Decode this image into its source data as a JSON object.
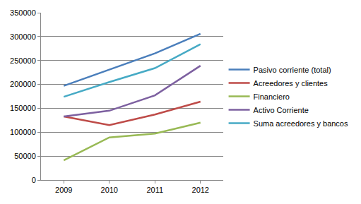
{
  "chart_data": {
    "type": "line",
    "categories": [
      "2009",
      "2010",
      "2011",
      "2012"
    ],
    "series": [
      {
        "name": "Pasivo corriente (total)",
        "color": "#4a7ebb",
        "values": [
          197000,
          231000,
          265000,
          306000
        ]
      },
      {
        "name": "Acreedores y clientes",
        "color": "#be4b48",
        "values": [
          133000,
          115000,
          137000,
          164000
        ]
      },
      {
        "name": "Financiero",
        "color": "#98b954",
        "values": [
          41000,
          89000,
          97000,
          120000
        ]
      },
      {
        "name": "Activo Corriente",
        "color": "#7d60a0",
        "values": [
          133000,
          145000,
          177000,
          239000
        ]
      },
      {
        "name": "Suma acreedores y bancos",
        "color": "#46aac5",
        "values": [
          174000,
          205000,
          234000,
          284000
        ]
      }
    ],
    "ylim": [
      0,
      350000
    ],
    "yticks": [
      0,
      50000,
      100000,
      150000,
      200000,
      250000,
      300000,
      350000
    ],
    "grid": true,
    "legend": "right"
  }
}
